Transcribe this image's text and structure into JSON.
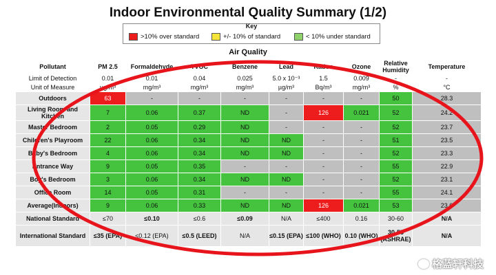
{
  "title": "Indoor Environmental Quality Summary (1/2)",
  "key": {
    "title": "Key",
    "items": [
      {
        "label": ">10% over standard",
        "color": "#ee1d1d"
      },
      {
        "label": "+/- 10% of standard",
        "color": "#f5e43a"
      },
      {
        "label": "< 10% under standard",
        "color": "#8fd16b"
      }
    ]
  },
  "section_title": "Air Quality",
  "headers": {
    "pollutant": "Pollutant",
    "columns": [
      "PM 2.5",
      "Formaldehyde",
      "TVOC",
      "Benzene",
      "Lead",
      "Radon",
      "Ozone",
      "Relative Humidity",
      "Temperature"
    ]
  },
  "detection": {
    "label": "Limit of Detection",
    "values": [
      "0.01",
      "0.01",
      "0.04",
      "0.025",
      "5.0 x 10⁻³",
      "1.5",
      "0.009",
      "-",
      "-"
    ]
  },
  "units": {
    "label": "Unit of Measure",
    "values": [
      "µg/m³",
      "mg/m³",
      "mg/m³",
      "mg/m³",
      "µg/m³",
      "Bq/m³",
      "mg/m³",
      "%",
      "°C"
    ]
  },
  "rows": [
    {
      "label": "Outdoors",
      "values": [
        "63",
        "-",
        "-",
        "-",
        "-",
        "-",
        "-",
        "50",
        "28.3"
      ],
      "colors": [
        "red",
        "gray",
        "gray",
        "gray",
        "gray",
        "gray",
        "gray",
        "green",
        "gray"
      ]
    },
    {
      "label": "Living Room and Kitchen",
      "values": [
        "7",
        "0.06",
        "0.37",
        "ND",
        "-",
        "126",
        "0.021",
        "52",
        "24.2"
      ],
      "colors": [
        "green",
        "green",
        "green",
        "green",
        "gray",
        "red",
        "green",
        "green",
        "gray"
      ]
    },
    {
      "label": "Master Bedroom",
      "values": [
        "2",
        "0.05",
        "0.29",
        "ND",
        "-",
        "-",
        "-",
        "52",
        "23.7"
      ],
      "colors": [
        "green",
        "green",
        "green",
        "green",
        "gray",
        "gray",
        "gray",
        "green",
        "gray"
      ]
    },
    {
      "label": "Children's Playroom",
      "values": [
        "22",
        "0.06",
        "0.34",
        "ND",
        "ND",
        "-",
        "-",
        "51",
        "23.5"
      ],
      "colors": [
        "green",
        "green",
        "green",
        "green",
        "green",
        "gray",
        "gray",
        "green",
        "gray"
      ]
    },
    {
      "label": "Baby's Bedroom",
      "values": [
        "4",
        "0.06",
        "0.34",
        "ND",
        "ND",
        "-",
        "-",
        "52",
        "23.3"
      ],
      "colors": [
        "green",
        "green",
        "green",
        "green",
        "green",
        "gray",
        "gray",
        "green",
        "gray"
      ]
    },
    {
      "label": "Entrance Way",
      "values": [
        "9",
        "0.05",
        "0.35",
        "-",
        "-",
        "-",
        "-",
        "55",
        "22.9"
      ],
      "colors": [
        "green",
        "green",
        "green",
        "gray",
        "gray",
        "gray",
        "gray",
        "green",
        "gray"
      ]
    },
    {
      "label": "Boy's Bedroom",
      "values": [
        "3",
        "0.06",
        "0.34",
        "ND",
        "ND",
        "-",
        "-",
        "52",
        "23.1"
      ],
      "colors": [
        "green",
        "green",
        "green",
        "green",
        "green",
        "gray",
        "gray",
        "green",
        "gray"
      ]
    },
    {
      "label": "Office Room",
      "values": [
        "14",
        "0.05",
        "0.31",
        "-",
        "-",
        "-",
        "-",
        "55",
        "24.1"
      ],
      "colors": [
        "green",
        "green",
        "green",
        "gray",
        "gray",
        "gray",
        "gray",
        "green",
        "gray"
      ]
    },
    {
      "label": "Average(Indoors)",
      "values": [
        "9",
        "0.06",
        "0.33",
        "ND",
        "ND",
        "126",
        "0.021",
        "53",
        "23.6"
      ],
      "colors": [
        "green",
        "green",
        "green",
        "green",
        "green",
        "red",
        "green",
        "green",
        "gray"
      ]
    }
  ],
  "standards": [
    {
      "label": "National Standard",
      "values": [
        "≤70",
        "≤0.10",
        "≤0.6",
        "≤0.09",
        "N/A",
        "≤400",
        "0.16",
        "30-60",
        "N/A"
      ],
      "bold": [
        false,
        true,
        false,
        true,
        false,
        false,
        false,
        false,
        true
      ]
    },
    {
      "label": "International Standard",
      "values": [
        "≤35 (EPA)",
        "≤0.12 (EPA)",
        "≤0.5 (LEED)",
        "N/A",
        "≤0.15 (EPA)",
        "≤100 (WHO)",
        "0.10 (WHO)",
        "30-55 (ASHRAE)",
        "N/A"
      ],
      "bold": [
        true,
        false,
        true,
        false,
        true,
        true,
        true,
        true,
        true
      ]
    }
  ],
  "watermark": "格蓝轩科技"
}
